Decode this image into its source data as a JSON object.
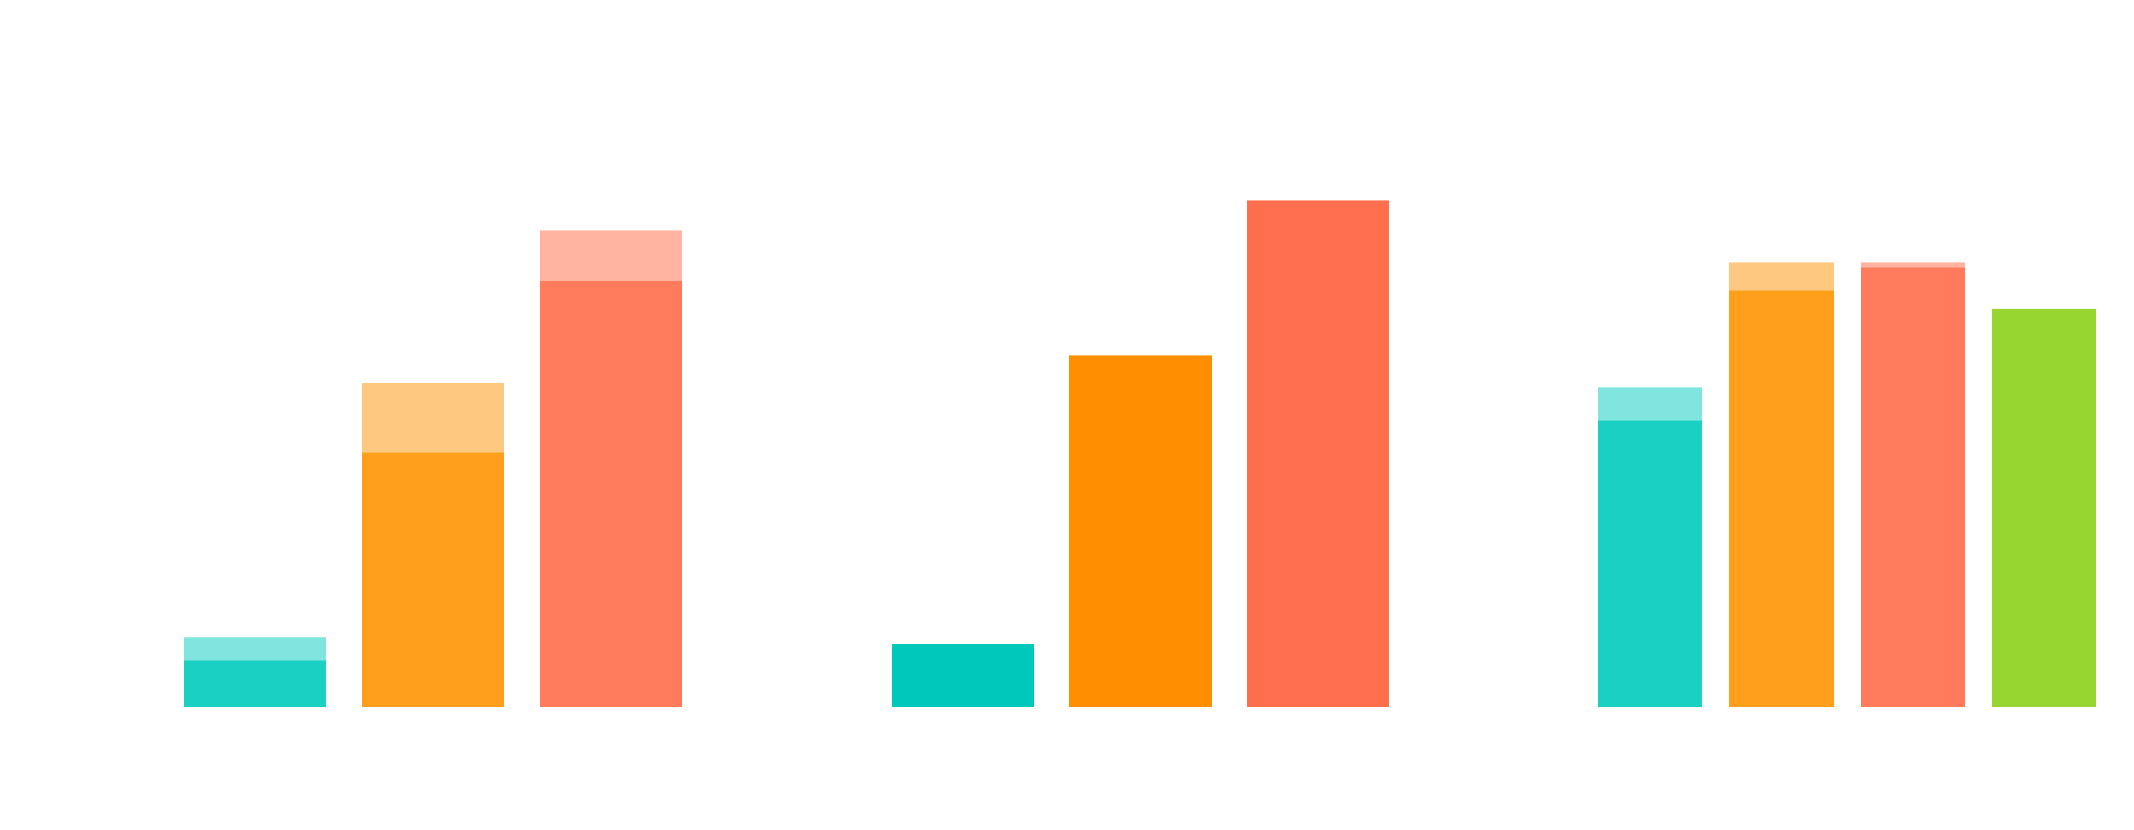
{
  "chart_data": {
    "type": "bar",
    "stacked": true,
    "title": "",
    "xlabel": "",
    "ylabel": "",
    "ylim": [
      0,
      110
    ],
    "grid": false,
    "legend": "none",
    "groups": [
      {
        "bars": [
          {
            "base": 10,
            "top": 5,
            "color": "#1ad0c3",
            "top_color": "#80e5df"
          },
          {
            "base": 55,
            "top": 15,
            "color": "#ff9f1c",
            "top_color": "#ffc880"
          },
          {
            "base": 92,
            "top": 11,
            "color": "#ff7b5c",
            "top_color": "#ffb3a0"
          }
        ]
      },
      {
        "bars": [
          {
            "base": 13.5,
            "top": 0,
            "color": "#00c9bb",
            "top_color": "#00c9bb"
          },
          {
            "base": 76,
            "top": 0,
            "color": "#ff8f00",
            "top_color": "#ff8f00"
          },
          {
            "base": 109.5,
            "top": 0,
            "color": "#ff6f4e",
            "top_color": "#ff6f4e"
          }
        ]
      },
      {
        "bars": [
          {
            "base": 62,
            "top": 7,
            "color": "#1ad0c3",
            "top_color": "#80e5df"
          },
          {
            "base": 90,
            "top": 6,
            "color": "#ff9f1c",
            "top_color": "#ffc880"
          },
          {
            "base": 95,
            "top": 1,
            "color": "#ff7b5c",
            "top_color": "#ffb3a0"
          },
          {
            "base": 86,
            "top": 0,
            "color": "#97d630",
            "top_color": "#97d630"
          }
        ]
      }
    ]
  }
}
